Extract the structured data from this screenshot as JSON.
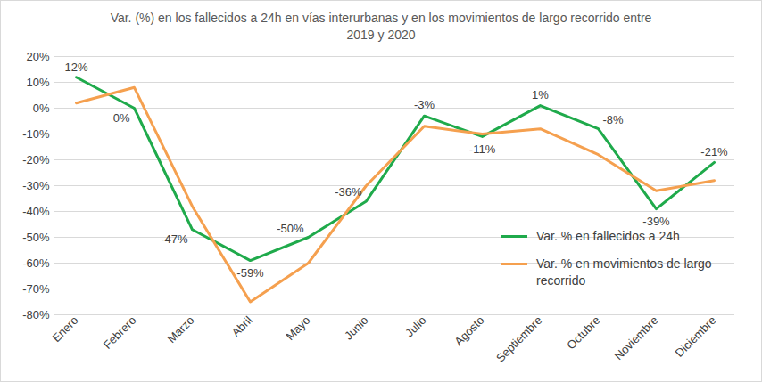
{
  "chart_data": {
    "type": "line",
    "title": "Var. (%) en los fallecidos a 24h en vías interurbanas y en los movimientos de largo recorrido entre 2019 y 2020",
    "categories": [
      "Enero",
      "Febrero",
      "Marzo",
      "Abril",
      "Mayo",
      "Junio",
      "Julio",
      "Agosto",
      "Septiembre",
      "Octubre",
      "Noviembre",
      "Diciembre"
    ],
    "series": [
      {
        "name": "Var. % en fallecidos a 24h",
        "color": "#1faa4b",
        "values": [
          12,
          0,
          -47,
          -59,
          -50,
          -36,
          -3,
          -11,
          1,
          -8,
          -39,
          -21
        ],
        "value_labels": [
          "12%",
          "0%",
          "-47%",
          "-59%",
          "-50%",
          "-36%",
          "-3%",
          "-11%",
          "1%",
          "-8%",
          "-39%",
          "-21%"
        ]
      },
      {
        "name": "Var. % en movimientos de largo recorrido",
        "color": "#f5a04f",
        "values": [
          2,
          8,
          -38,
          -75,
          -60,
          -30,
          -7,
          -10,
          -8,
          -18,
          -32,
          -28
        ]
      }
    ],
    "ylim": [
      -80,
      20
    ],
    "yticks": [
      {
        "value": -80,
        "label": "-80%"
      },
      {
        "value": -70,
        "label": "-70%"
      },
      {
        "value": -60,
        "label": "-60%"
      },
      {
        "value": -50,
        "label": "-50%"
      },
      {
        "value": -40,
        "label": "-40%"
      },
      {
        "value": -30,
        "label": "-30%"
      },
      {
        "value": -20,
        "label": "-20%"
      },
      {
        "value": -10,
        "label": "-10%"
      },
      {
        "value": 0,
        "label": "0%"
      },
      {
        "value": 10,
        "label": "10%"
      },
      {
        "value": 20,
        "label": "20%"
      }
    ],
    "grid": true,
    "data_labels": true,
    "legend": "lower right"
  }
}
